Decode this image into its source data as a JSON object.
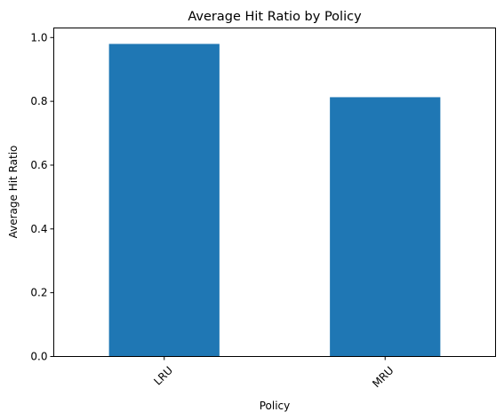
{
  "chart_data": {
    "type": "bar",
    "title": "Average Hit Ratio by Policy",
    "xlabel": "Policy",
    "ylabel": "Average Hit Ratio",
    "categories": [
      "LRU",
      "MRU"
    ],
    "values": [
      0.98,
      0.813
    ],
    "ylim": [
      0,
      1.03
    ],
    "yticks": [
      0.0,
      0.2,
      0.4,
      0.6,
      0.8,
      1.0
    ],
    "ytick_labels": [
      "0.0",
      "0.2",
      "0.4",
      "0.6",
      "0.8",
      "1.0"
    ],
    "xtick_rotation": "45 degrees",
    "bar_color": "#1f77b4",
    "grid": false,
    "legend": "none"
  }
}
